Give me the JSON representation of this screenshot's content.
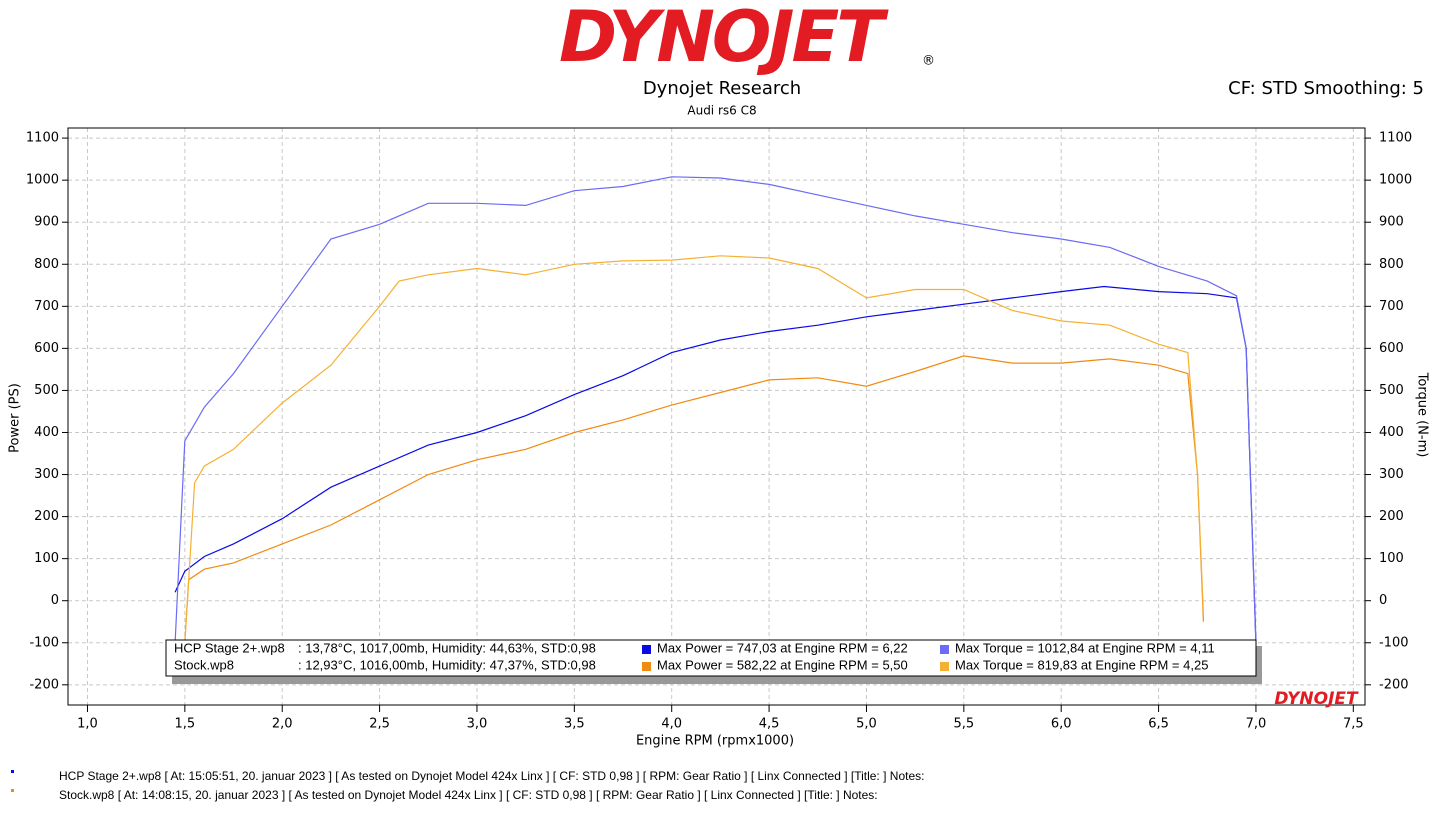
{
  "header": {
    "logo": "DYNOJET",
    "registered": "®",
    "company": "Dynojet Research",
    "vehicle": "Audi rs6 C8",
    "settings": "CF: STD Smoothing: 5"
  },
  "chart_data": {
    "type": "line",
    "xlabel": "Engine RPM (rpmx1000)",
    "ylabel": "Power (PS)",
    "y2label": "Torque (N-m)",
    "xlim": [
      0.9,
      7.56
    ],
    "ylim": [
      -248,
      1124
    ],
    "y2lim": [
      -248,
      1124
    ],
    "xticks": [
      {
        "value": 1.0,
        "label": "1,0"
      },
      {
        "value": 1.5,
        "label": "1,5"
      },
      {
        "value": 2.0,
        "label": "2,0"
      },
      {
        "value": 2.5,
        "label": "2,5"
      },
      {
        "value": 3.0,
        "label": "3,0"
      },
      {
        "value": 3.5,
        "label": "3,5"
      },
      {
        "value": 4.0,
        "label": "4,0"
      },
      {
        "value": 4.5,
        "label": "4,5"
      },
      {
        "value": 5.0,
        "label": "5,0"
      },
      {
        "value": 5.5,
        "label": "5,5"
      },
      {
        "value": 6.0,
        "label": "6,0"
      },
      {
        "value": 6.5,
        "label": "6,5"
      },
      {
        "value": 7.0,
        "label": "7,0"
      },
      {
        "value": 7.5,
        "label": "7,5"
      }
    ],
    "yticks": [
      -200,
      -100,
      0,
      100,
      200,
      300,
      400,
      500,
      600,
      700,
      800,
      900,
      1000,
      1100
    ],
    "y2ticks": [
      -200,
      -100,
      0,
      100,
      200,
      300,
      400,
      500,
      600,
      700,
      800,
      900,
      1000,
      1100
    ],
    "grid": true,
    "series": [
      {
        "name": "Max Power = 747,03 at Engine RPM = 6,22",
        "color": "#0a0ae6",
        "x": [
          1.45,
          1.5,
          1.6,
          1.75,
          2.0,
          2.25,
          2.5,
          2.75,
          3.0,
          3.25,
          3.5,
          3.75,
          4.0,
          4.25,
          4.5,
          4.75,
          5.0,
          5.25,
          5.5,
          5.75,
          6.0,
          6.22,
          6.5,
          6.75,
          6.9,
          6.95,
          7.0
        ],
        "values": [
          20,
          70,
          105,
          135,
          195,
          270,
          320,
          370,
          400,
          440,
          490,
          535,
          590,
          620,
          640,
          655,
          675,
          690,
          705,
          720,
          735,
          747,
          735,
          730,
          720,
          600,
          -100
        ]
      },
      {
        "name": "Max Torque = 1012,84 at Engine RPM = 4,11",
        "color": "#6b6bf5",
        "axis": "y2",
        "x": [
          1.45,
          1.5,
          1.6,
          1.75,
          2.0,
          2.25,
          2.5,
          2.75,
          3.0,
          3.25,
          3.5,
          3.75,
          4.0,
          4.25,
          4.5,
          4.75,
          5.0,
          5.25,
          5.5,
          5.75,
          6.0,
          6.25,
          6.5,
          6.75,
          6.9,
          6.95,
          7.0
        ],
        "values": [
          -100,
          380,
          460,
          540,
          700,
          860,
          895,
          945,
          945,
          940,
          975,
          985,
          1008,
          1005,
          990,
          965,
          940,
          915,
          895,
          875,
          860,
          840,
          795,
          760,
          725,
          600,
          -100
        ]
      },
      {
        "name": "Max Power = 582,22 at Engine RPM = 5,50",
        "color": "#f08a10",
        "x": [
          1.5,
          1.52,
          1.6,
          1.75,
          2.0,
          2.25,
          2.5,
          2.75,
          3.0,
          3.25,
          3.5,
          3.75,
          4.0,
          4.25,
          4.5,
          4.75,
          5.0,
          5.25,
          5.5,
          5.75,
          6.0,
          6.25,
          6.5,
          6.65,
          6.7,
          6.73
        ],
        "values": [
          -100,
          50,
          75,
          90,
          135,
          180,
          240,
          300,
          335,
          360,
          400,
          430,
          465,
          495,
          525,
          530,
          510,
          545,
          582,
          565,
          565,
          575,
          560,
          540,
          300,
          -50
        ]
      },
      {
        "name": "Max Torque = 819,83 at Engine RPM = 4,25",
        "color": "#f5b031",
        "axis": "y2",
        "x": [
          1.5,
          1.52,
          1.55,
          1.6,
          1.75,
          2.0,
          2.25,
          2.5,
          2.6,
          2.75,
          3.0,
          3.25,
          3.5,
          3.75,
          4.0,
          4.25,
          4.5,
          4.75,
          5.0,
          5.25,
          5.5,
          5.75,
          6.0,
          6.25,
          6.5,
          6.65,
          6.7,
          6.73
        ],
        "values": [
          -100,
          50,
          280,
          320,
          360,
          470,
          560,
          700,
          760,
          775,
          790,
          775,
          800,
          808,
          810,
          820,
          815,
          790,
          720,
          740,
          740,
          690,
          665,
          655,
          610,
          590,
          300,
          -30
        ]
      }
    ],
    "watermark": "DYNOJET"
  },
  "legend": {
    "rows": [
      {
        "file": "HCP Stage 2+.wp8",
        "conditions": ": 13,78°C, 1017,00mb, Humidity: 44,63%, STD:0,98"
      },
      {
        "file": "Stock.wp8",
        "conditions": ": 12,93°C, 1016,00mb, Humidity: 47,37%, STD:0,98"
      }
    ]
  },
  "notes": [
    "HCP Stage 2+.wp8 [ At: 15:05:51, 20. januar 2023 ] [ As tested on Dynojet Model 424x Linx ] [ CF: STD 0,98 ] [ RPM: Gear Ratio ] [ Linx Connected ] [Title: ]  Notes:",
    "Stock.wp8 [ At: 14:08:15, 20. januar 2023 ] [ As tested on Dynojet Model 424x Linx ] [ CF: STD 0,98 ] [ RPM: Gear Ratio ] [ Linx Connected ] [Title: ]  Notes:"
  ]
}
